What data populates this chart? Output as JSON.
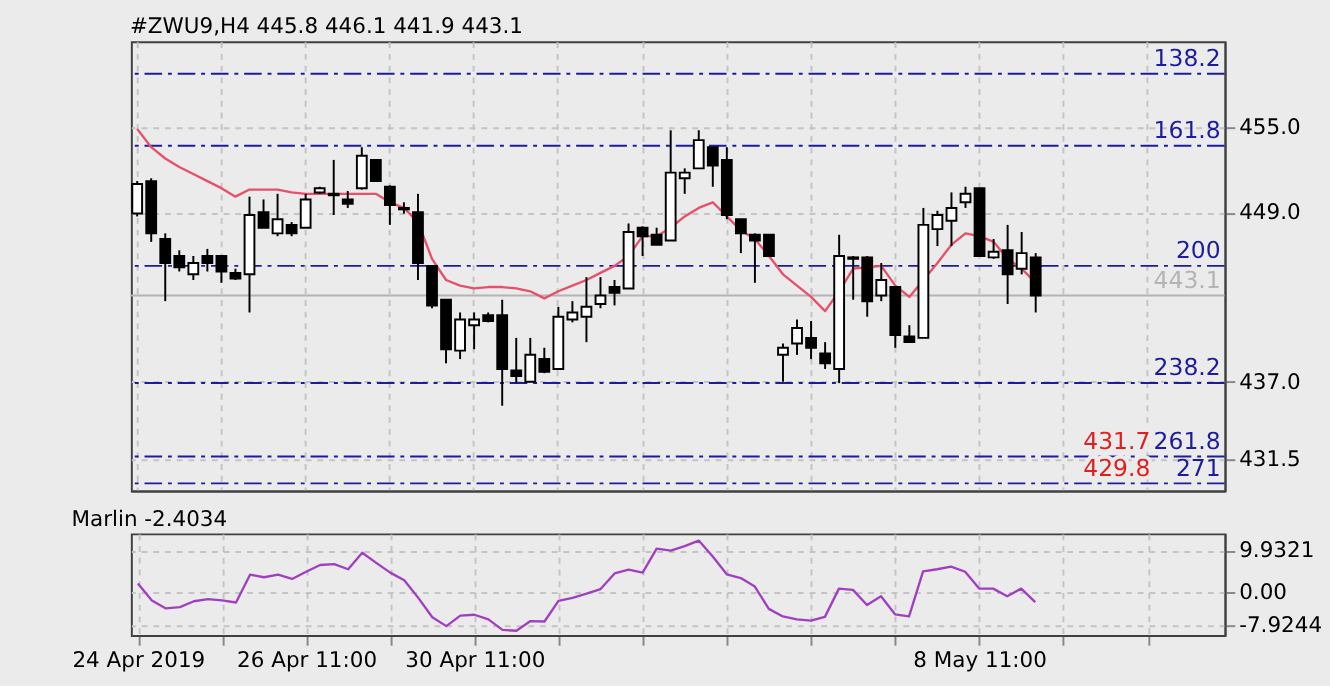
{
  "chart_data": [
    {
      "type": "candlestick",
      "title": "#ZWU9,H4  445.8 446.1 441.9 443.1",
      "ohlc": [
        [
          448.9,
          451.2,
          448.7,
          451.0
        ],
        [
          451.2,
          451.4,
          446.9,
          447.5
        ],
        [
          447.1,
          447.5,
          442.7,
          445.4
        ],
        [
          445.9,
          446.3,
          444.8,
          445.1
        ],
        [
          444.6,
          445.9,
          444.2,
          445.4
        ],
        [
          445.9,
          446.4,
          444.8,
          445.4
        ],
        [
          445.9,
          445.9,
          444.0,
          444.8
        ],
        [
          444.7,
          445.0,
          444.2,
          444.3
        ],
        [
          444.6,
          450.1,
          441.9,
          448.8
        ],
        [
          449.0,
          449.9,
          447.9,
          447.9
        ],
        [
          447.5,
          450.3,
          447.3,
          448.5
        ],
        [
          448.1,
          448.3,
          447.3,
          447.5
        ],
        [
          447.9,
          450.3,
          447.9,
          449.9
        ],
        [
          450.4,
          450.8,
          450.3,
          450.7
        ],
        [
          450.3,
          452.7,
          448.8,
          450.2
        ],
        [
          449.9,
          450.5,
          449.3,
          449.6
        ],
        [
          450.7,
          453.6,
          450.6,
          453.0
        ],
        [
          452.7,
          452.7,
          451.2,
          451.2
        ],
        [
          450.8,
          450.9,
          448.1,
          449.5
        ],
        [
          449.3,
          449.7,
          448.9,
          449.2
        ],
        [
          449.0,
          450.3,
          444.2,
          445.4
        ],
        [
          445.2,
          445.2,
          442.2,
          442.4
        ],
        [
          442.8,
          442.8,
          438.3,
          439.3
        ],
        [
          439.2,
          441.9,
          438.6,
          441.4
        ],
        [
          441.0,
          441.9,
          439.3,
          441.4
        ],
        [
          441.7,
          441.9,
          441.2,
          441.3
        ],
        [
          441.7,
          442.8,
          435.3,
          437.9
        ],
        [
          437.8,
          440.1,
          436.9,
          437.4
        ],
        [
          437.0,
          440.1,
          437.0,
          438.9
        ],
        [
          438.6,
          439.4,
          437.6,
          437.7
        ],
        [
          437.9,
          442.3,
          437.9,
          441.6
        ],
        [
          441.4,
          442.7,
          441.2,
          441.9
        ],
        [
          441.6,
          444.4,
          439.8,
          442.3
        ],
        [
          442.5,
          444.4,
          442.2,
          443.1
        ],
        [
          443.7,
          444.2,
          442.4,
          443.3
        ],
        [
          443.6,
          448.2,
          443.6,
          447.6
        ],
        [
          447.9,
          448.0,
          445.9,
          447.3
        ],
        [
          447.4,
          447.9,
          446.7,
          446.7
        ],
        [
          447.0,
          454.8,
          447.0,
          451.8
        ],
        [
          451.4,
          452.1,
          450.3,
          451.8
        ],
        [
          452.1,
          454.8,
          452.1,
          454.1
        ],
        [
          453.6,
          453.6,
          450.8,
          452.3
        ],
        [
          452.7,
          453.6,
          448.5,
          448.8
        ],
        [
          448.5,
          448.5,
          446.1,
          447.5
        ],
        [
          447.4,
          447.5,
          444.0,
          447.0
        ],
        [
          447.4,
          447.4,
          445.9,
          445.9
        ],
        [
          438.9,
          439.7,
          437.0,
          439.4
        ],
        [
          439.7,
          441.4,
          438.9,
          440.8
        ],
        [
          440.1,
          441.3,
          438.6,
          439.4
        ],
        [
          439.0,
          439.8,
          437.9,
          438.3
        ],
        [
          437.9,
          447.4,
          436.9,
          445.9
        ],
        [
          445.8,
          445.9,
          442.8,
          445.7
        ],
        [
          445.8,
          445.9,
          441.6,
          442.7
        ],
        [
          443.1,
          445.4,
          442.7,
          444.2
        ],
        [
          443.7,
          443.7,
          439.4,
          440.3
        ],
        [
          440.2,
          441.0,
          439.8,
          439.8
        ],
        [
          440.1,
          449.3,
          440.1,
          448.1
        ],
        [
          447.8,
          449.1,
          446.6,
          448.8
        ],
        [
          448.4,
          450.4,
          446.6,
          449.3
        ],
        [
          449.7,
          450.8,
          449.3,
          450.3
        ],
        [
          450.7,
          450.7,
          445.9,
          445.9
        ],
        [
          445.8,
          447.1,
          445.7,
          446.2
        ],
        [
          446.3,
          448.1,
          442.5,
          444.6
        ],
        [
          445.0,
          447.6,
          444.6,
          446.1
        ],
        [
          445.8,
          446.1,
          441.9,
          443.1
        ],
        null,
        null,
        null,
        null,
        null,
        null,
        null,
        null,
        null,
        null,
        null,
        null,
        null
      ],
      "colors": [
        "#ffffff",
        "#000000",
        "#000000",
        "#000000",
        "#ffffff",
        "#000000",
        "#000000",
        "#000000",
        "#ffffff",
        "#000000",
        "#ffffff",
        "#000000",
        "#ffffff",
        "#ffffff",
        "#000000",
        "#000000",
        "#ffffff",
        "#000000",
        "#000000",
        "#000000",
        "#000000",
        "#000000",
        "#000000",
        "#ffffff",
        "#ffffff",
        "#000000",
        "#000000",
        "#000000",
        "#ffffff",
        "#000000",
        "#ffffff",
        "#ffffff",
        "#ffffff",
        "#ffffff",
        "#000000",
        "#ffffff",
        "#000000",
        "#000000",
        "#ffffff",
        "#ffffff",
        "#ffffff",
        "#000000",
        "#000000",
        "#000000",
        "#000000",
        "#000000",
        "#ffffff",
        "#ffffff",
        "#000000",
        "#000000",
        "#ffffff",
        "#000000",
        "#000000",
        "#ffffff",
        "#000000",
        "#000000",
        "#ffffff",
        "#ffffff",
        "#ffffff",
        "#ffffff",
        "#000000",
        "#ffffff",
        "#000000",
        "#ffffff",
        "#000000",
        null,
        null,
        null,
        null,
        null,
        null,
        null,
        null,
        null,
        null,
        null,
        null,
        null
      ],
      "series": [
        {
          "type": "line",
          "color": "#e8506a",
          "values": [
            454.9,
            453.6,
            452.8,
            452.2,
            451.7,
            451.2,
            450.7,
            450.1,
            450.6,
            450.6,
            450.6,
            450.4,
            450.3,
            450.3,
            450.3,
            450.3,
            450.3,
            450.3,
            449.7,
            449.3,
            448.3,
            445.7,
            444.2,
            443.8,
            443.6,
            443.7,
            443.7,
            443.6,
            443.4,
            442.9,
            443.4,
            443.8,
            444.2,
            444.7,
            445.2,
            445.9,
            447.3,
            447.3,
            447.9,
            448.7,
            449.3,
            449.7,
            448.7,
            447.7,
            447.1,
            445.9,
            444.6,
            443.8,
            443.0,
            442.0,
            443.4,
            445.0,
            445.1,
            445.2,
            443.8,
            443.0,
            444.2,
            445.4,
            446.7,
            447.5,
            447.3,
            446.9,
            445.7,
            445.0,
            444.0,
            null,
            null,
            null,
            null,
            null,
            null,
            null,
            null,
            null,
            null,
            null,
            null,
            null
          ]
        }
      ],
      "ylim": [
        429.3,
        461.1
      ],
      "yticks": [
        {
          "value": 455,
          "label": "455.0"
        },
        {
          "value": 449,
          "label": "449.0"
        },
        {
          "value": 437,
          "label": "437.0"
        },
        {
          "value": 431.5,
          "label": "431.5"
        }
      ],
      "ref_lines": [
        {
          "axis": "y",
          "value": 458.8,
          "color": "#1c1c9c",
          "line_style": "dashed"
        },
        {
          "axis": "y",
          "value": 453.7,
          "color": "#1c1c9c",
          "line_style": "dashed"
        },
        {
          "axis": "y",
          "value": 445.2,
          "color": "#1c1c9c",
          "line_style": "dashed"
        },
        {
          "axis": "y",
          "value": 436.9,
          "color": "#1c1c9c",
          "line_style": "dashed"
        },
        {
          "axis": "y",
          "value": 431.7,
          "label": "431.7",
          "color": "#1c1c9c",
          "line_style": "dashed"
        },
        {
          "axis": "y",
          "value": 429.8,
          "label": "429.8",
          "color": "#1c1c9c",
          "line_style": "dashed"
        },
        {
          "axis": "y",
          "value": 443.1,
          "color": "#b4b4b4",
          "line_style": "solid"
        }
      ],
      "annotations": [
        {
          "text": "138.2",
          "y": 458.8
        },
        {
          "text": "161.8",
          "y": 453.7
        },
        {
          "text": "200",
          "y": 445.2
        },
        {
          "text": "238.2",
          "y": 436.9
        },
        {
          "text": "261.8",
          "y": 431.7
        },
        {
          "text": "271",
          "y": 429.8
        },
        {
          "text": "443.1",
          "y": 443.1
        }
      ],
      "grid": true,
      "tick_labels": "y"
    },
    {
      "type": "line",
      "title": "Marlin -2.4034",
      "categories": [
        "24 Apr 2019",
        null,
        null,
        null,
        null,
        null,
        null,
        null,
        null,
        null,
        null,
        null,
        "26 Apr 11:00",
        null,
        null,
        null,
        null,
        null,
        null,
        null,
        null,
        null,
        null,
        null,
        "30 Apr 11:00",
        null,
        null,
        null,
        null,
        null,
        null,
        null,
        null,
        null,
        null,
        null,
        null,
        null,
        null,
        null,
        null,
        null,
        null,
        null,
        null,
        null,
        null,
        null,
        null,
        null,
        null,
        null,
        null,
        null,
        null,
        null,
        null,
        null,
        null,
        null,
        "8 May 11:00",
        null,
        null,
        null,
        null,
        null,
        null,
        null,
        null,
        null,
        null,
        null,
        null,
        null,
        null,
        null,
        null,
        null
      ],
      "series": [
        {
          "color": "#a040c0",
          "values": [
            2.0,
            -2.0,
            -3.9,
            -3.6,
            -2.2,
            -1.7,
            -2.0,
            -2.5,
            4.1,
            3.5,
            4.1,
            3.1,
            4.8,
            6.4,
            6.6,
            5.4,
            9.3,
            6.9,
            4.6,
            2.8,
            -1.4,
            -6.0,
            -8.1,
            -5.6,
            -5.4,
            -6.5,
            -9.0,
            -9.2,
            -6.9,
            -7.0,
            -2.1,
            -1.4,
            -0.4,
            0.7,
            4.4,
            5.3,
            4.6,
            10.3,
            9.8,
            10.9,
            12.2,
            8.4,
            4.2,
            3.3,
            1.3,
            -4.0,
            -5.8,
            -6.5,
            -6.8,
            -5.9,
            0.8,
            0.5,
            -3.1,
            -1.0,
            -5.3,
            -5.8,
            4.9,
            5.4,
            6.0,
            4.8,
            0.8,
            0.8,
            -1.0,
            0.8,
            -2.4,
            null,
            null,
            null,
            null,
            null,
            null,
            null,
            null,
            null,
            null,
            null,
            null,
            null
          ]
        }
      ],
      "ylim": [
        -10.2,
        13.9
      ],
      "yticks": [
        9.9321,
        {
          "value": 0,
          "label": "0.00"
        },
        -7.9244
      ],
      "grid": true
    }
  ]
}
